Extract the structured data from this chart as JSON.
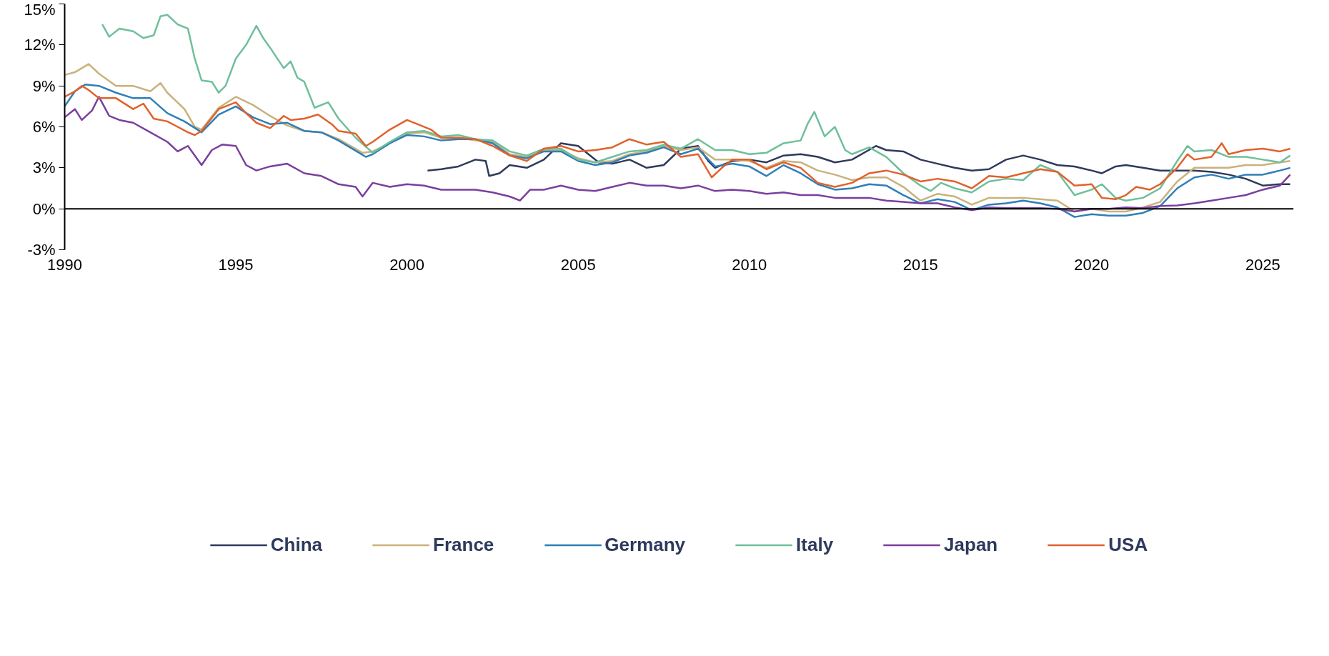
{
  "chart_data": {
    "type": "line",
    "xlim": [
      1990,
      2025.9
    ],
    "xticks": [
      1990,
      1995,
      2000,
      2005,
      2010,
      2015,
      2020,
      2025
    ],
    "ylim": [
      -3,
      15
    ],
    "yticks": [
      {
        "value": -3,
        "label": "-3%"
      },
      {
        "value": 0,
        "label": "0%"
      },
      {
        "value": 3,
        "label": "3%"
      },
      {
        "value": 6,
        "label": "6%"
      },
      {
        "value": 9,
        "label": "9%"
      },
      {
        "value": 12,
        "label": "12%"
      },
      {
        "value": 15,
        "label": "15%"
      }
    ],
    "grid": false,
    "legend": "bottom",
    "line_style": "solid",
    "ref_lines": [
      {
        "axis": "y",
        "value": 0,
        "color": "#000000"
      }
    ],
    "series": [
      {
        "name": "China",
        "color": "#2e3a5c",
        "x": [
          2000.6,
          2001,
          2001.5,
          2002,
          2002.3,
          2002.4,
          2002.7,
          2003,
          2003.5,
          2004,
          2004.5,
          2005,
          2005.3,
          2005.6,
          2006,
          2006.5,
          2007,
          2007.5,
          2008,
          2008.5,
          2008.8,
          2009,
          2009.5,
          2010,
          2010.5,
          2011,
          2011.5,
          2012,
          2012.5,
          2013,
          2013.7,
          2014,
          2014.5,
          2015,
          2015.5,
          2016,
          2016.5,
          2017,
          2017.5,
          2018,
          2018.5,
          2019,
          2019.5,
          2020,
          2020.3,
          2020.7,
          2021,
          2021.5,
          2022,
          2022.5,
          2023,
          2023.5,
          2024,
          2024.5,
          2025,
          2025.5,
          2025.8
        ],
        "values": [
          2.8,
          2.9,
          3.1,
          3.6,
          3.5,
          2.4,
          2.6,
          3.2,
          3.0,
          3.6,
          4.8,
          4.6,
          4.0,
          3.4,
          3.3,
          3.6,
          3.0,
          3.2,
          4.4,
          4.6,
          3.5,
          3.0,
          3.5,
          3.6,
          3.4,
          3.9,
          4.0,
          3.8,
          3.4,
          3.6,
          4.6,
          4.3,
          4.2,
          3.6,
          3.3,
          3.0,
          2.8,
          2.9,
          3.6,
          3.9,
          3.6,
          3.2,
          3.1,
          2.8,
          2.6,
          3.1,
          3.2,
          3.0,
          2.8,
          2.8,
          2.8,
          2.7,
          2.5,
          2.2,
          1.7,
          1.8,
          1.8
        ]
      },
      {
        "name": "France",
        "color": "#c9b27c",
        "x": [
          1990,
          1990.3,
          1990.7,
          1991,
          1991.5,
          1992,
          1992.5,
          1992.8,
          1993,
          1993.5,
          1993.8,
          1994,
          1994.5,
          1995,
          1995.5,
          1996,
          1996.5,
          1997,
          1997.5,
          1998,
          1998.7,
          1999,
          1999.5,
          2000,
          2000.5,
          2001,
          2001.5,
          2002,
          2002.5,
          2003,
          2003.5,
          2004,
          2004.5,
          2005,
          2005.5,
          2006,
          2006.5,
          2007,
          2007.5,
          2008,
          2008.5,
          2009,
          2009.5,
          2010,
          2010.5,
          2011,
          2011.5,
          2012,
          2012.5,
          2013,
          2013.5,
          2014,
          2014.5,
          2015,
          2015.5,
          2016,
          2016.5,
          2017,
          2017.5,
          2018,
          2018.5,
          2019,
          2019.5,
          2020,
          2020.5,
          2021,
          2021.5,
          2022,
          2022.5,
          2023,
          2023.5,
          2024,
          2024.5,
          2025,
          2025.5,
          2025.8
        ],
        "values": [
          9.8,
          10.0,
          10.6,
          9.9,
          9.0,
          9.0,
          8.6,
          9.2,
          8.5,
          7.3,
          6.0,
          5.8,
          7.4,
          8.2,
          7.6,
          6.8,
          6.1,
          5.7,
          5.6,
          5.1,
          4.1,
          4.2,
          4.8,
          5.5,
          5.6,
          5.2,
          5.2,
          5.0,
          4.9,
          4.0,
          3.8,
          4.3,
          4.3,
          3.7,
          3.4,
          3.5,
          4.0,
          4.2,
          4.6,
          4.3,
          4.5,
          3.6,
          3.6,
          3.5,
          3.0,
          3.5,
          3.4,
          2.8,
          2.5,
          2.1,
          2.3,
          2.3,
          1.6,
          0.6,
          1.1,
          0.9,
          0.3,
          0.8,
          0.8,
          0.8,
          0.7,
          0.6,
          -0.2,
          0.0,
          -0.2,
          -0.2,
          0.1,
          0.5,
          2.0,
          3.0,
          3.0,
          3.0,
          3.2,
          3.2,
          3.4,
          3.5
        ]
      },
      {
        "name": "Germany",
        "color": "#2f7fb8",
        "x": [
          1990,
          1990.3,
          1990.6,
          1991,
          1991.5,
          1992,
          1992.5,
          1993,
          1993.5,
          1994,
          1994.5,
          1995,
          1995.5,
          1996,
          1996.5,
          1997,
          1997.5,
          1998,
          1998.8,
          1999,
          1999.5,
          2000,
          2000.5,
          2001,
          2001.5,
          2002,
          2002.5,
          2003,
          2003.5,
          2004,
          2004.5,
          2005,
          2005.5,
          2006,
          2006.5,
          2007,
          2007.5,
          2008,
          2008.5,
          2009,
          2009.5,
          2010,
          2010.5,
          2011,
          2011.5,
          2012,
          2012.5,
          2013,
          2013.5,
          2014,
          2014.5,
          2015,
          2015.5,
          2016,
          2016.5,
          2017,
          2017.5,
          2018,
          2018.5,
          2019,
          2019.5,
          2020,
          2020.5,
          2021,
          2021.5,
          2022,
          2022.5,
          2023,
          2023.5,
          2024,
          2024.5,
          2025,
          2025.5,
          2025.8
        ],
        "values": [
          7.5,
          8.6,
          9.1,
          9.0,
          8.5,
          8.1,
          8.1,
          7.0,
          6.4,
          5.6,
          6.9,
          7.5,
          6.7,
          6.2,
          6.3,
          5.7,
          5.6,
          5.0,
          3.8,
          4.0,
          4.8,
          5.4,
          5.3,
          5.0,
          5.1,
          5.1,
          4.8,
          3.9,
          3.7,
          4.2,
          4.2,
          3.5,
          3.2,
          3.4,
          3.9,
          4.1,
          4.5,
          4.0,
          4.4,
          3.1,
          3.3,
          3.1,
          2.4,
          3.2,
          2.6,
          1.8,
          1.4,
          1.5,
          1.8,
          1.7,
          1.0,
          0.4,
          0.7,
          0.5,
          -0.1,
          0.3,
          0.4,
          0.6,
          0.4,
          0.1,
          -0.6,
          -0.4,
          -0.5,
          -0.5,
          -0.3,
          0.2,
          1.5,
          2.3,
          2.5,
          2.2,
          2.5,
          2.5,
          2.8,
          3.0
        ]
      },
      {
        "name": "Italy",
        "color": "#6fbf9b",
        "x": [
          1991.1,
          1991.3,
          1991.6,
          1992,
          1992.3,
          1992.6,
          1992.8,
          1993,
          1993.3,
          1993.6,
          1993.8,
          1994,
          1994.3,
          1994.5,
          1994.7,
          1995,
          1995.3,
          1995.6,
          1995.8,
          1996,
          1996.4,
          1996.6,
          1996.8,
          1997,
          1997.3,
          1997.7,
          1998,
          1998.5,
          1999,
          1999.5,
          2000,
          2000.5,
          2001,
          2001.5,
          2002,
          2002.5,
          2003,
          2003.5,
          2004,
          2004.5,
          2005,
          2005.5,
          2006,
          2006.5,
          2007,
          2007.5,
          2008,
          2008.5,
          2009,
          2009.5,
          2010,
          2010.5,
          2011,
          2011.5,
          2011.7,
          2011.9,
          2012.2,
          2012.5,
          2012.8,
          2013,
          2013.5,
          2014,
          2014.5,
          2015,
          2015.3,
          2015.6,
          2016,
          2016.5,
          2017,
          2017.5,
          2018,
          2018.5,
          2019,
          2019.5,
          2020,
          2020.3,
          2020.7,
          2021,
          2021.5,
          2022,
          2022.5,
          2022.8,
          2023,
          2023.5,
          2024,
          2024.5,
          2025,
          2025.5,
          2025.8
        ],
        "values": [
          13.5,
          12.6,
          13.2,
          13.0,
          12.5,
          12.7,
          14.1,
          14.2,
          13.5,
          13.2,
          11.0,
          9.4,
          9.3,
          8.5,
          9.0,
          11.0,
          12.0,
          13.4,
          12.5,
          11.8,
          10.3,
          10.8,
          9.6,
          9.3,
          7.4,
          7.8,
          6.6,
          5.2,
          4.1,
          4.9,
          5.6,
          5.7,
          5.3,
          5.4,
          5.1,
          5.0,
          4.2,
          3.9,
          4.4,
          4.4,
          3.6,
          3.4,
          3.8,
          4.2,
          4.3,
          4.7,
          4.4,
          5.1,
          4.3,
          4.3,
          4.0,
          4.1,
          4.8,
          5.0,
          6.2,
          7.1,
          5.3,
          6.0,
          4.3,
          4.0,
          4.5,
          3.8,
          2.6,
          1.7,
          1.3,
          1.9,
          1.5,
          1.2,
          2.0,
          2.2,
          2.1,
          3.2,
          2.7,
          1.0,
          1.4,
          1.8,
          0.8,
          0.6,
          0.8,
          1.5,
          3.5,
          4.6,
          4.2,
          4.3,
          3.8,
          3.8,
          3.6,
          3.4,
          3.9
        ]
      },
      {
        "name": "Japan",
        "color": "#7b3f9e",
        "x": [
          1990,
          1990.3,
          1990.5,
          1990.8,
          1991,
          1991.3,
          1991.6,
          1992,
          1992.5,
          1993,
          1993.3,
          1993.6,
          1994,
          1994.3,
          1994.6,
          1995,
          1995.3,
          1995.6,
          1996,
          1996.5,
          1997,
          1997.5,
          1998,
          1998.5,
          1998.7,
          1999,
          1999.5,
          2000,
          2000.5,
          2001,
          2001.5,
          2002,
          2002.5,
          2003,
          2003.3,
          2003.6,
          2004,
          2004.5,
          2005,
          2005.5,
          2006,
          2006.5,
          2007,
          2007.5,
          2008,
          2008.5,
          2009,
          2009.5,
          2010,
          2010.5,
          2011,
          2011.5,
          2012,
          2012.5,
          2013,
          2013.5,
          2014,
          2014.5,
          2015,
          2015.5,
          2016,
          2016.5,
          2017,
          2017.5,
          2018,
          2018.5,
          2019,
          2019.5,
          2020,
          2020.5,
          2021,
          2021.5,
          2022,
          2022.5,
          2023,
          2023.5,
          2024,
          2024.5,
          2025,
          2025.5,
          2025.8
        ],
        "values": [
          6.7,
          7.3,
          6.5,
          7.2,
          8.2,
          6.8,
          6.5,
          6.3,
          5.6,
          4.9,
          4.2,
          4.6,
          3.2,
          4.3,
          4.7,
          4.6,
          3.2,
          2.8,
          3.1,
          3.3,
          2.6,
          2.4,
          1.8,
          1.6,
          0.9,
          1.9,
          1.6,
          1.8,
          1.7,
          1.4,
          1.4,
          1.4,
          1.2,
          0.9,
          0.6,
          1.4,
          1.4,
          1.7,
          1.4,
          1.3,
          1.6,
          1.9,
          1.7,
          1.7,
          1.5,
          1.7,
          1.3,
          1.4,
          1.3,
          1.1,
          1.2,
          1.0,
          1.0,
          0.8,
          0.8,
          0.8,
          0.6,
          0.5,
          0.4,
          0.4,
          0.1,
          -0.1,
          0.1,
          0.05,
          0.05,
          0.05,
          0.0,
          -0.2,
          0.0,
          0.0,
          0.1,
          0.05,
          0.2,
          0.25,
          0.4,
          0.6,
          0.8,
          1.0,
          1.4,
          1.7,
          2.5
        ]
      },
      {
        "name": "USA",
        "color": "#e0622c",
        "x": [
          1990,
          1990.3,
          1990.5,
          1990.7,
          1991,
          1991.5,
          1992,
          1992.3,
          1992.6,
          1993,
          1993.3,
          1993.6,
          1993.8,
          1994,
          1994.5,
          1995,
          1995.3,
          1995.6,
          1996,
          1996.4,
          1996.6,
          1997,
          1997.4,
          1997.8,
          1998,
          1998.5,
          1998.8,
          1999,
          1999.5,
          2000,
          2000.3,
          2000.7,
          2001,
          2001.5,
          2002,
          2002.5,
          2003,
          2003.5,
          2004,
          2004.5,
          2005,
          2005.5,
          2006,
          2006.5,
          2007,
          2007.5,
          2008,
          2008.5,
          2008.9,
          2009.2,
          2009.5,
          2010,
          2010.5,
          2011,
          2011.5,
          2012,
          2012.5,
          2013,
          2013.5,
          2014,
          2014.5,
          2015,
          2015.5,
          2016,
          2016.5,
          2017,
          2017.5,
          2018,
          2018.5,
          2019,
          2019.5,
          2020,
          2020.3,
          2020.7,
          2021,
          2021.3,
          2021.7,
          2022,
          2022.5,
          2022.8,
          2023,
          2023.5,
          2023.8,
          2024,
          2024.5,
          2025,
          2025.5,
          2025.8
        ],
        "values": [
          8.2,
          8.6,
          9.0,
          8.7,
          8.1,
          8.1,
          7.3,
          7.7,
          6.6,
          6.4,
          6.0,
          5.6,
          5.4,
          5.7,
          7.3,
          7.8,
          7.0,
          6.3,
          5.9,
          6.8,
          6.5,
          6.6,
          6.9,
          6.2,
          5.7,
          5.5,
          4.6,
          4.9,
          5.8,
          6.5,
          6.2,
          5.8,
          5.2,
          5.2,
          5.1,
          4.6,
          3.9,
          3.5,
          4.4,
          4.6,
          4.2,
          4.3,
          4.5,
          5.1,
          4.7,
          4.9,
          3.8,
          4.0,
          2.3,
          3.0,
          3.6,
          3.6,
          2.9,
          3.4,
          3.0,
          1.9,
          1.6,
          1.9,
          2.6,
          2.8,
          2.5,
          2.0,
          2.2,
          2.0,
          1.5,
          2.4,
          2.3,
          2.6,
          2.9,
          2.7,
          1.7,
          1.8,
          0.8,
          0.7,
          1.0,
          1.6,
          1.4,
          1.8,
          3.0,
          4.0,
          3.6,
          3.8,
          4.8,
          4.0,
          4.3,
          4.4,
          4.2,
          4.4
        ]
      }
    ]
  }
}
